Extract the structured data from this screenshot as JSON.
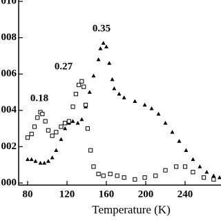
{
  "chart_data": {
    "type": "scatter",
    "xlabel": "Temperature (K)",
    "xlim": [
      72,
      276
    ],
    "ylim": [
      0,
      0.01
    ],
    "xticks": [
      80,
      120,
      160,
      200,
      240,
      {
        "value": 280,
        "label": "2"
      }
    ],
    "yticks": [
      {
        "value": 0,
        "label": "000"
      },
      {
        "value": 0.002,
        "label": "002"
      },
      {
        "value": 0.004,
        "label": "004"
      },
      {
        "value": 0.006,
        "label": "006"
      },
      {
        "value": 0.008,
        "label": "008"
      },
      {
        "value": 0.01,
        "label": "010"
      }
    ],
    "annotations": [
      "0.18",
      "0.27",
      "0.35"
    ],
    "series": [
      {
        "marker": "triangle",
        "color": "#000000",
        "x": [
          80,
          84,
          88,
          93,
          97,
          101,
          105,
          109,
          114,
          118,
          122,
          126,
          131,
          135,
          139,
          143,
          147,
          152,
          154,
          157,
          160,
          163,
          166,
          168,
          173,
          178,
          189,
          199,
          206,
          213,
          220,
          227,
          234,
          241,
          248,
          255,
          262,
          269,
          275
        ],
        "values": [
          0.0013,
          0.0013,
          0.0012,
          0.0011,
          0.0011,
          0.0012,
          0.0014,
          0.0018,
          0.0024,
          0.003,
          0.0033,
          0.0034,
          0.0033,
          0.0035,
          0.0042,
          0.005,
          0.0059,
          0.0068,
          0.0074,
          0.0077,
          0.0075,
          0.0066,
          0.0057,
          0.0052,
          0.0049,
          0.0047,
          0.0045,
          0.0043,
          0.0041,
          0.0038,
          0.0033,
          0.0028,
          0.0023,
          0.0018,
          0.0013,
          0.0009,
          0.0006,
          0.0004,
          0.0003
        ]
      },
      {
        "marker": "square",
        "color": "#000000",
        "x": [
          80,
          84,
          87,
          90,
          93,
          95,
          98,
          101,
          105,
          109,
          114,
          118,
          122,
          126,
          129,
          132,
          135,
          137,
          139,
          141,
          144,
          147,
          152,
          157,
          164,
          171,
          178,
          189,
          199,
          210,
          220,
          231,
          240,
          248,
          259,
          269
        ],
        "values": [
          0.0025,
          0.0027,
          0.0031,
          0.0036,
          0.0039,
          0.0038,
          0.0034,
          0.0029,
          0.0026,
          0.0028,
          0.0031,
          0.0033,
          0.0034,
          0.0042,
          0.0049,
          0.0054,
          0.0056,
          0.0053,
          0.0043,
          0.003,
          0.0018,
          0.0009,
          0.0005,
          0.0004,
          0.0005,
          0.0004,
          0.0003,
          0.0002,
          0.0003,
          0.0004,
          0.0007,
          0.0009,
          0.0009,
          0.0006,
          0.0003,
          0.0002
        ]
      }
    ]
  }
}
